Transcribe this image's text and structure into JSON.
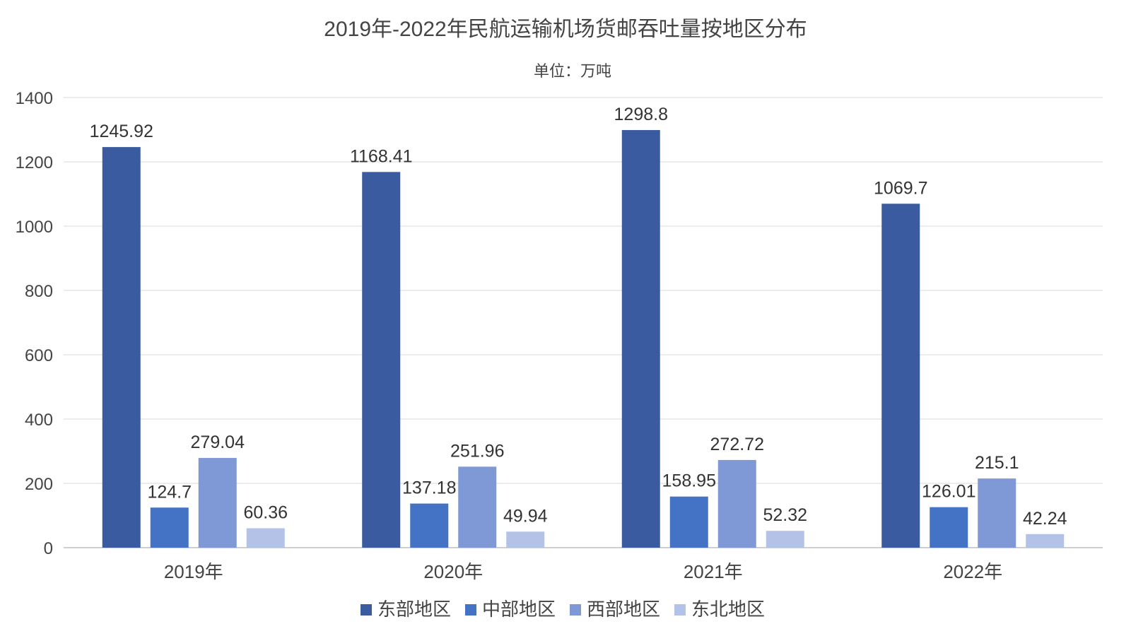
{
  "chart_data": {
    "type": "bar",
    "title": "2019年-2022年民航运输机场货邮吞吐量按地区分布",
    "subtitle": "单位：万吨",
    "categories": [
      "2019年",
      "2020年",
      "2021年",
      "2022年"
    ],
    "series": [
      {
        "name": "东部地区",
        "color": "#3A5BA0",
        "values": [
          1245.92,
          1168.41,
          1298.8,
          1069.7
        ],
        "labels": [
          "1245.92",
          "1168.41",
          "1298.8",
          "1069.7"
        ]
      },
      {
        "name": "中部地区",
        "color": "#4472C4",
        "values": [
          124.7,
          137.18,
          158.95,
          126.01
        ],
        "labels": [
          "124.7",
          "137.18",
          "158.95",
          "126.01"
        ]
      },
      {
        "name": "西部地区",
        "color": "#7F99D6",
        "values": [
          279.04,
          251.96,
          272.72,
          215.1
        ],
        "labels": [
          "279.04",
          "251.96",
          "272.72",
          "215.1"
        ]
      },
      {
        "name": "东北地区",
        "color": "#B4C2E7",
        "values": [
          60.36,
          49.94,
          52.32,
          42.24
        ],
        "labels": [
          "60.36",
          "49.94",
          "52.32",
          "42.24"
        ]
      }
    ],
    "ylim": [
      0,
      1400
    ],
    "yticks": [
      "0",
      "200",
      "400",
      "600",
      "800",
      "1000",
      "1200",
      "1400"
    ],
    "grid": true,
    "legend_position": "bottom"
  }
}
